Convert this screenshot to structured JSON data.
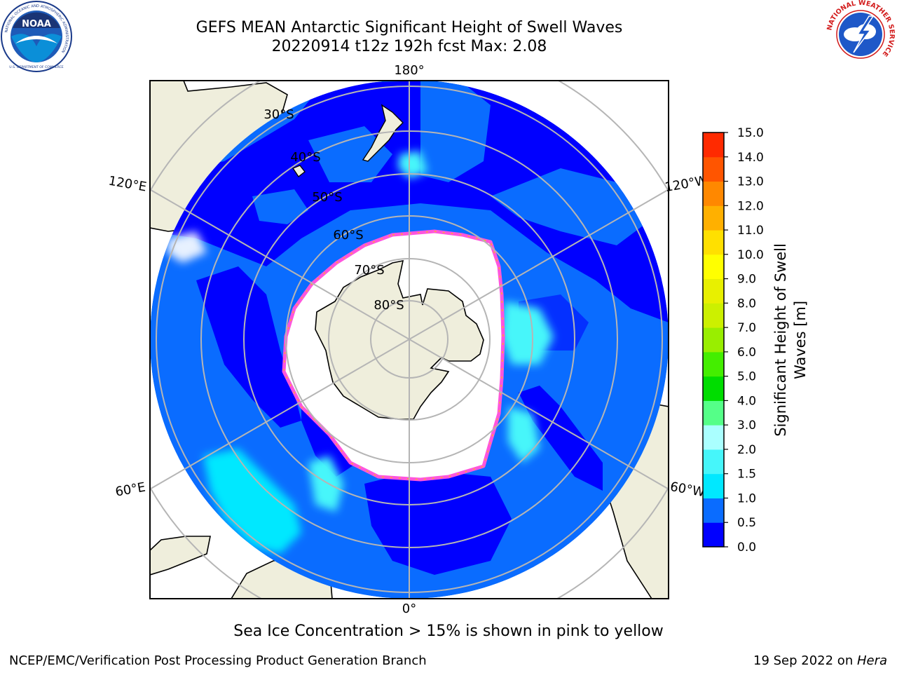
{
  "title_line1": "GEFS MEAN Antarctic Significant Height of Swell Waves",
  "title_line2": "20220914 t12z 192h fcst   Max: 2.08",
  "noaa_logo": {
    "center_text": "NOAA",
    "ring_text": "NATIONAL OCEANIC AND ATMOSPHERIC ADMINISTRATION",
    "bottom_text": "U.S. DEPARTMENT OF COMMERCE"
  },
  "nws_logo": {
    "ring_text": "NATIONAL WEATHER SERVICE"
  },
  "map": {
    "longitude_labels": [
      "180°",
      "120°E",
      "120°W",
      "60°E",
      "60°W",
      "0°"
    ],
    "latitude_labels": [
      "30°S",
      "40°S",
      "50°S",
      "60°S",
      "70°S",
      "80°S"
    ],
    "colors": {
      "land": "#efeedc",
      "grid": "#b5b5b5",
      "ice_edge": "#ff55dd",
      "ice_fringe": "#ffaa33"
    }
  },
  "colorbar": {
    "label_line1": "Significant Height of Swell",
    "label_line2": "Waves [m]",
    "ticks": [
      "0.0",
      "0.5",
      "1.0",
      "1.5",
      "2.0",
      "3.0",
      "4.0",
      "5.0",
      "6.0",
      "7.0",
      "8.0",
      "9.0",
      "10.0",
      "11.0",
      "12.0",
      "13.0",
      "14.0",
      "15.0"
    ],
    "colors": [
      "#0000ff",
      "#0a6cff",
      "#00e8ff",
      "#46f6fa",
      "#aaffff",
      "#55ff88",
      "#00dd00",
      "#44ee00",
      "#99ee00",
      "#ccf000",
      "#e8f000",
      "#ffff00",
      "#ffe000",
      "#ffb000",
      "#ff8800",
      "#ff5500",
      "#ff2a00",
      "#ff0000"
    ]
  },
  "caption": "Sea Ice Concentration > 15% is shown in pink to yellow",
  "footer_left": "NCEP/EMC/Verification Post Processing Product Generation Branch",
  "footer_date": "19 Sep 2022 on ",
  "footer_host": "Hera"
}
